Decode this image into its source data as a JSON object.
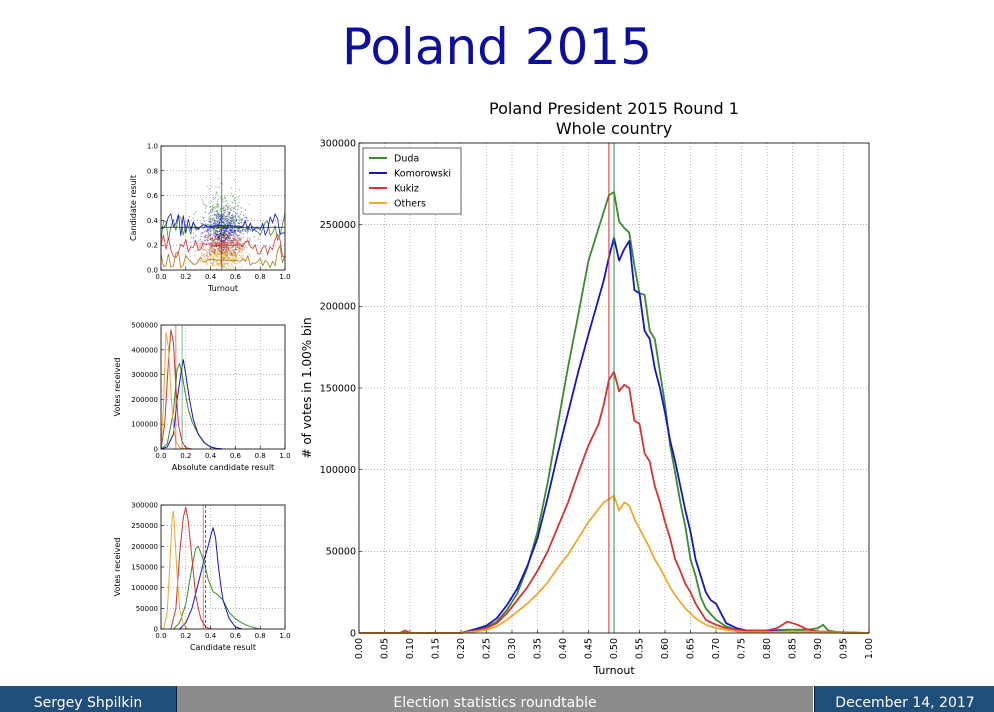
{
  "slide": {
    "title": "Poland 2015",
    "footer_left": "Sergey Shpilkin",
    "footer_center": "Election statistics roundtable",
    "footer_right": "December 14, 2017"
  },
  "colors": {
    "Duda": "#3a8a2e",
    "Komorowski": "#1515c8",
    "Kukiz": "#d63232",
    "Others": "#f0a830",
    "title": "#0d0d9e"
  },
  "chart_data": [
    {
      "type": "scatter",
      "xlabel": "Turnout",
      "ylabel": "Candidate result",
      "xlim": [
        0,
        1
      ],
      "ylim": [
        0,
        1
      ],
      "xticks": [
        "0.0",
        "0.2",
        "0.4",
        "0.6",
        "0.8",
        "1.0"
      ],
      "yticks": [
        "0.0",
        "0.2",
        "0.4",
        "0.6",
        "0.8",
        "1.0"
      ],
      "grid": true,
      "series": [
        {
          "name": "Duda",
          "center_x": 0.5,
          "center_y": 0.36,
          "spread_x": 0.08,
          "spread_y": 0.14
        },
        {
          "name": "Komorowski",
          "center_x": 0.5,
          "center_y": 0.34,
          "spread_x": 0.09,
          "spread_y": 0.07
        },
        {
          "name": "Kukiz",
          "center_x": 0.5,
          "center_y": 0.21,
          "spread_x": 0.09,
          "spread_y": 0.05
        },
        {
          "name": "Others",
          "center_x": 0.5,
          "center_y": 0.1,
          "spread_x": 0.09,
          "spread_y": 0.05
        }
      ]
    },
    {
      "type": "line",
      "xlabel": "Absolute candidate result",
      "ylabel": "Votes received",
      "xlim": [
        0,
        1
      ],
      "ylim": [
        0,
        500000
      ],
      "xticks": [
        "0.0",
        "0.2",
        "0.4",
        "0.6",
        "0.8",
        "1.0"
      ],
      "yticks": [
        "0",
        "100000",
        "200000",
        "300000",
        "400000",
        "500000"
      ],
      "grid": true,
      "series": [
        {
          "name": "Duda",
          "x": [
            0.0,
            0.05,
            0.1,
            0.13,
            0.15,
            0.17,
            0.19,
            0.22,
            0.25,
            0.3,
            0.35,
            0.4,
            0.45,
            0.5
          ],
          "values": [
            0,
            20000,
            150000,
            320000,
            345000,
            300000,
            240000,
            160000,
            110000,
            60000,
            25000,
            8000,
            2000,
            0
          ]
        },
        {
          "name": "Komorowski",
          "x": [
            0.0,
            0.05,
            0.1,
            0.13,
            0.16,
            0.18,
            0.2,
            0.23,
            0.26,
            0.3,
            0.35,
            0.4,
            0.45,
            0.5
          ],
          "values": [
            0,
            8000,
            60000,
            200000,
            300000,
            360000,
            300000,
            200000,
            120000,
            60000,
            25000,
            8000,
            2000,
            0
          ]
        },
        {
          "name": "Kukiz",
          "x": [
            0.0,
            0.03,
            0.06,
            0.08,
            0.1,
            0.12,
            0.14,
            0.17,
            0.2,
            0.25
          ],
          "values": [
            0,
            100000,
            350000,
            480000,
            430000,
            250000,
            100000,
            30000,
            5000,
            0
          ]
        },
        {
          "name": "Others",
          "x": [
            0.0,
            0.02,
            0.04,
            0.06,
            0.08,
            0.1,
            0.12,
            0.15,
            0.2
          ],
          "values": [
            0,
            180000,
            470000,
            410000,
            230000,
            90000,
            30000,
            5000,
            0
          ]
        }
      ]
    },
    {
      "type": "line",
      "xlabel": "Candidate result",
      "ylabel": "Votes received",
      "xlim": [
        0,
        1
      ],
      "ylim": [
        0,
        300000
      ],
      "xticks": [
        "0.0",
        "0.2",
        "0.4",
        "0.6",
        "0.8",
        "1.0"
      ],
      "yticks": [
        "0",
        "50000",
        "100000",
        "150000",
        "200000",
        "250000",
        "300000"
      ],
      "grid": true,
      "series": [
        {
          "name": "Duda",
          "x": [
            0.1,
            0.15,
            0.2,
            0.25,
            0.28,
            0.3,
            0.32,
            0.35,
            0.38,
            0.42,
            0.45,
            0.5,
            0.55,
            0.6,
            0.65,
            0.7,
            0.75,
            0.8
          ],
          "values": [
            0,
            15000,
            60000,
            150000,
            195000,
            200000,
            185000,
            160000,
            120000,
            90000,
            85000,
            70000,
            40000,
            25000,
            15000,
            8000,
            3000,
            0
          ]
        },
        {
          "name": "Komorowski",
          "x": [
            0.15,
            0.2,
            0.25,
            0.3,
            0.35,
            0.38,
            0.4,
            0.42,
            0.44,
            0.46,
            0.48,
            0.5,
            0.55,
            0.6,
            0.65
          ],
          "values": [
            0,
            15000,
            50000,
            110000,
            170000,
            200000,
            225000,
            245000,
            220000,
            160000,
            110000,
            70000,
            25000,
            5000,
            0
          ]
        },
        {
          "name": "Kukiz",
          "x": [
            0.08,
            0.12,
            0.15,
            0.18,
            0.2,
            0.22,
            0.25,
            0.28,
            0.32,
            0.36,
            0.4
          ],
          "values": [
            0,
            50000,
            180000,
            270000,
            295000,
            260000,
            170000,
            80000,
            25000,
            5000,
            0
          ]
        },
        {
          "name": "Others",
          "x": [
            0.02,
            0.05,
            0.07,
            0.09,
            0.1,
            0.11,
            0.13,
            0.15,
            0.18,
            0.22
          ],
          "values": [
            0,
            40000,
            150000,
            270000,
            285000,
            240000,
            130000,
            50000,
            10000,
            0
          ]
        }
      ]
    },
    {
      "type": "line",
      "title": "Poland President 2015 Round 1",
      "subtitle": "Whole country",
      "xlabel": "Turnout",
      "ylabel": "# of votes in 1.00% bin",
      "xlim": [
        0,
        1
      ],
      "ylim": [
        0,
        300000
      ],
      "xticks": [
        "0.00",
        "0.05",
        "0.10",
        "0.15",
        "0.20",
        "0.25",
        "0.30",
        "0.35",
        "0.40",
        "0.45",
        "0.50",
        "0.55",
        "0.60",
        "0.65",
        "0.70",
        "0.75",
        "0.80",
        "0.85",
        "0.90",
        "0.95",
        "1.00"
      ],
      "yticks": [
        "0",
        "50000",
        "100000",
        "150000",
        "200000",
        "250000",
        "300000"
      ],
      "legend": "top-left",
      "grid": true,
      "vlines": [
        {
          "x": 0.49,
          "color": "#d63232"
        },
        {
          "x": 0.5,
          "color": "#3a8a2e"
        }
      ],
      "series": [
        {
          "name": "Duda",
          "x": [
            0.0,
            0.08,
            0.09,
            0.1,
            0.2,
            0.23,
            0.25,
            0.27,
            0.29,
            0.31,
            0.33,
            0.35,
            0.37,
            0.39,
            0.41,
            0.43,
            0.45,
            0.47,
            0.48,
            0.49,
            0.5,
            0.51,
            0.52,
            0.53,
            0.54,
            0.55,
            0.56,
            0.57,
            0.58,
            0.59,
            0.6,
            0.61,
            0.62,
            0.63,
            0.64,
            0.65,
            0.66,
            0.67,
            0.68,
            0.7,
            0.72,
            0.74,
            0.76,
            0.8,
            0.84,
            0.88,
            0.9,
            0.91,
            0.92,
            0.95,
            1.0
          ],
          "values": [
            0,
            0,
            1500,
            0,
            0,
            2000,
            3500,
            7000,
            14000,
            24000,
            40000,
            62000,
            92000,
            128000,
            163000,
            195000,
            228000,
            248000,
            258000,
            268000,
            270000,
            252000,
            248000,
            245000,
            225000,
            208000,
            207000,
            185000,
            180000,
            160000,
            140000,
            115000,
            98000,
            80000,
            65000,
            45000,
            35000,
            22000,
            15000,
            8000,
            4000,
            2000,
            1500,
            1500,
            2000,
            2000,
            3000,
            5000,
            1500,
            0,
            0
          ]
        },
        {
          "name": "Komorowski",
          "x": [
            0.0,
            0.2,
            0.23,
            0.25,
            0.27,
            0.29,
            0.31,
            0.33,
            0.35,
            0.37,
            0.39,
            0.41,
            0.43,
            0.45,
            0.47,
            0.48,
            0.49,
            0.5,
            0.51,
            0.52,
            0.53,
            0.54,
            0.55,
            0.56,
            0.57,
            0.58,
            0.59,
            0.6,
            0.61,
            0.62,
            0.63,
            0.64,
            0.65,
            0.66,
            0.67,
            0.68,
            0.69,
            0.7,
            0.71,
            0.72,
            0.74,
            0.76,
            0.8,
            0.85,
            0.9,
            1.0
          ],
          "values": [
            0,
            0,
            2500,
            4500,
            9000,
            17000,
            27000,
            41000,
            58000,
            83000,
            110000,
            135000,
            160000,
            183000,
            205000,
            216000,
            230000,
            242000,
            228000,
            235000,
            240000,
            210000,
            208000,
            185000,
            180000,
            162000,
            150000,
            135000,
            118000,
            105000,
            90000,
            75000,
            62000,
            45000,
            35000,
            25000,
            20000,
            18000,
            12000,
            6000,
            3000,
            1500,
            1000,
            1000,
            500,
            0
          ]
        },
        {
          "name": "Kukiz",
          "x": [
            0.0,
            0.08,
            0.09,
            0.1,
            0.2,
            0.23,
            0.25,
            0.27,
            0.29,
            0.31,
            0.33,
            0.35,
            0.37,
            0.39,
            0.41,
            0.43,
            0.45,
            0.47,
            0.48,
            0.49,
            0.5,
            0.51,
            0.52,
            0.53,
            0.54,
            0.55,
            0.56,
            0.57,
            0.58,
            0.59,
            0.6,
            0.61,
            0.62,
            0.63,
            0.64,
            0.65,
            0.66,
            0.67,
            0.68,
            0.7,
            0.72,
            0.74,
            0.76,
            0.8,
            0.82,
            0.84,
            0.85,
            0.86,
            0.88,
            0.9,
            1.0
          ],
          "values": [
            0,
            0,
            1500,
            0,
            0,
            1500,
            3000,
            6000,
            12000,
            20000,
            28000,
            38000,
            50000,
            65000,
            80000,
            98000,
            115000,
            128000,
            140000,
            155000,
            160000,
            148000,
            152000,
            150000,
            130000,
            128000,
            110000,
            105000,
            90000,
            80000,
            68000,
            58000,
            45000,
            38000,
            30000,
            25000,
            18000,
            13000,
            8000,
            5000,
            3000,
            2000,
            1500,
            1500,
            3000,
            7000,
            6000,
            5000,
            2000,
            1000,
            0
          ]
        },
        {
          "name": "Others",
          "x": [
            0.0,
            0.2,
            0.23,
            0.25,
            0.27,
            0.29,
            0.31,
            0.33,
            0.35,
            0.37,
            0.39,
            0.41,
            0.43,
            0.45,
            0.47,
            0.48,
            0.49,
            0.5,
            0.51,
            0.52,
            0.53,
            0.54,
            0.55,
            0.56,
            0.57,
            0.58,
            0.59,
            0.6,
            0.61,
            0.62,
            0.63,
            0.64,
            0.65,
            0.66,
            0.67,
            0.68,
            0.7,
            0.72,
            0.74,
            0.76,
            0.8,
            0.85,
            0.9,
            1.0
          ],
          "values": [
            0,
            0,
            1000,
            2000,
            4000,
            8000,
            13000,
            18000,
            24000,
            31000,
            40000,
            48000,
            58000,
            68000,
            76000,
            80000,
            82000,
            84000,
            75000,
            80000,
            78000,
            70000,
            64000,
            58000,
            52000,
            45000,
            40000,
            34000,
            28000,
            23000,
            19000,
            15000,
            12000,
            9000,
            7000,
            5000,
            3000,
            2000,
            1000,
            500,
            500,
            1000,
            500,
            0
          ]
        }
      ]
    }
  ]
}
